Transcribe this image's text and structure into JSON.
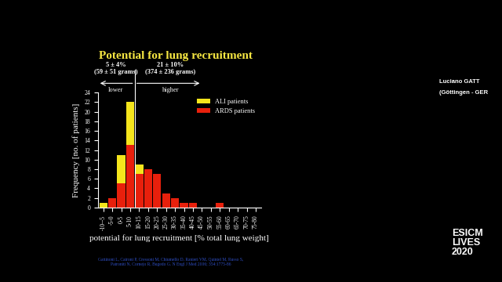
{
  "chart_data": {
    "type": "bar",
    "stacked": true,
    "title": "Potential for lung recruitment",
    "x_label": "potential for lung recruitment [% total lung weight]",
    "y_label": "Frequency [no. of patients]",
    "categories": [
      "-10--5",
      "-5-0",
      "0-5",
      "5-10",
      "10-15",
      "15-20",
      "20-25",
      "25-30",
      "30-35",
      "35-40",
      "40-45",
      "45-50",
      "50-55",
      "55-60",
      "60-65",
      "65-70",
      "70-75",
      "75-80"
    ],
    "series": [
      {
        "name": "ARDS patients",
        "color": "#e8200c",
        "values": [
          0,
          2,
          5,
          13,
          7,
          8,
          7,
          3,
          2,
          1,
          1,
          0,
          0,
          1,
          0,
          0,
          0,
          0
        ]
      },
      {
        "name": "ALI patients",
        "color": "#f5e51c",
        "values": [
          1,
          0,
          6,
          9,
          2,
          0,
          0,
          0,
          0,
          0,
          0,
          0,
          0,
          0,
          0,
          0,
          0,
          0
        ]
      }
    ],
    "legend": "upper right",
    "ylim": [
      0,
      24
    ],
    "yticks": [
      0,
      2,
      4,
      6,
      8,
      10,
      12,
      14,
      16,
      18,
      20,
      22,
      24
    ],
    "annotations": [
      "5 ± 4%\n(59 ± 51 grams)",
      "lower",
      "21 ± 10%\n(374 ± 236 grams)",
      "higher",
      "Gattinoni L, Caironi P, Cressoni M, Chiumello D, Ranieri VM, Quintel M, Russo S,\nPatroniti N, Cornejo R, Bugedo G. N Engl J Med 2006; 354:1775-86",
      "Luciano GATT",
      "(Göttingen - GER",
      "ESICM\nLIVES\n2020"
    ]
  }
}
